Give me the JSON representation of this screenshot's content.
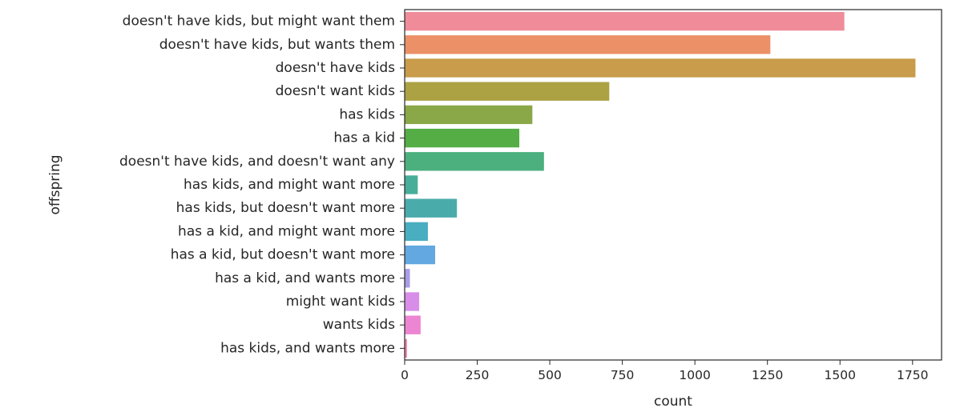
{
  "chart_data": {
    "type": "bar",
    "orientation": "horizontal",
    "xlabel": "count",
    "ylabel": "offspring",
    "xlim": [
      0,
      1850
    ],
    "xticks": [
      0,
      250,
      500,
      750,
      1000,
      1250,
      1500,
      1750
    ],
    "grid": false,
    "categories": [
      "doesn't have kids, but might want them",
      "doesn't have kids, but wants them",
      "doesn't have kids",
      "doesn't want kids",
      "has kids",
      "has a kid",
      "doesn't have kids, and doesn't want any",
      "has kids, and might want more",
      "has kids, but doesn't want more",
      "has a kid, and might want more",
      "has a kid, but doesn't want more",
      "has a kid, and wants more",
      "might want kids",
      "wants kids",
      "has kids, and wants more"
    ],
    "values": [
      1515,
      1260,
      1760,
      705,
      440,
      395,
      480,
      45,
      180,
      80,
      105,
      18,
      50,
      55,
      8
    ],
    "colors": [
      "#f08c9a",
      "#ec9068",
      "#c89c4a",
      "#aca244",
      "#8aa848",
      "#55ad46",
      "#4bb07e",
      "#47ae99",
      "#4aabab",
      "#49aec0",
      "#63a8e0",
      "#a99ce6",
      "#d88ee8",
      "#ec86d2",
      "#f184ac"
    ]
  }
}
